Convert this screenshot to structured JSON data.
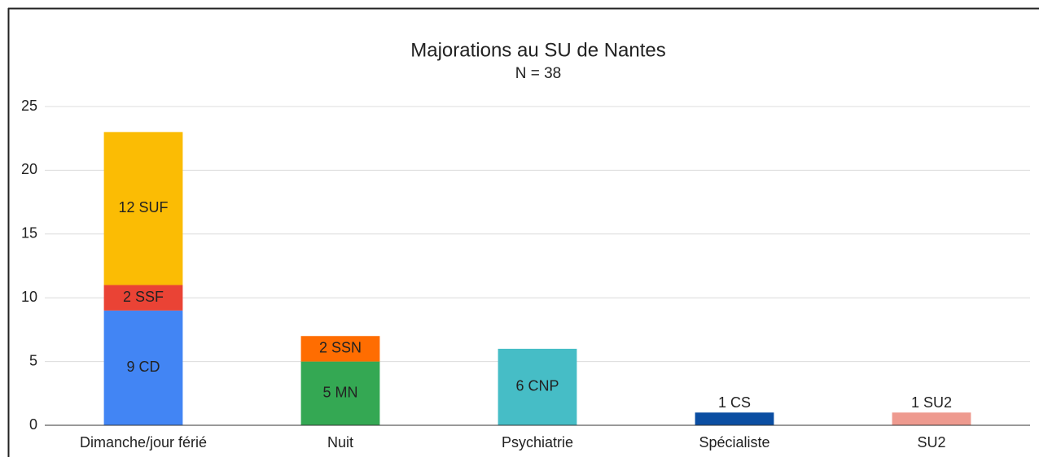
{
  "chart_data": {
    "type": "bar",
    "stacked": true,
    "title": "Majorations au SU de Nantes",
    "subtitle": "N = 38",
    "categories": [
      "Dimanche/jour férié",
      "Nuit",
      "Psychiatrie",
      "Spécialiste",
      "SU2"
    ],
    "series": [
      {
        "color": "#4285f4",
        "values": [
          9,
          null,
          null,
          null,
          null
        ],
        "value_labels": [
          "9 CD",
          null,
          null,
          null,
          null
        ]
      },
      {
        "color": "#ea4335",
        "values": [
          2,
          null,
          null,
          null,
          null
        ],
        "value_labels": [
          "2 SSF",
          null,
          null,
          null,
          null
        ]
      },
      {
        "color": "#fbbc04",
        "values": [
          12,
          null,
          null,
          null,
          null
        ],
        "value_labels": [
          "12 SUF",
          null,
          null,
          null,
          null
        ]
      },
      {
        "color": "#34a853",
        "values": [
          null,
          5,
          null,
          null,
          null
        ],
        "value_labels": [
          null,
          "5 MN",
          null,
          null,
          null
        ]
      },
      {
        "color": "#ff6d01",
        "values": [
          null,
          2,
          null,
          null,
          null
        ],
        "value_labels": [
          null,
          "2 SSN",
          null,
          null,
          null
        ]
      },
      {
        "color": "#46bdc6",
        "values": [
          null,
          null,
          6,
          null,
          null
        ],
        "value_labels": [
          null,
          null,
          "6 CNP",
          null,
          null
        ]
      },
      {
        "color": "#0b4ea2",
        "values": [
          null,
          null,
          null,
          1,
          null
        ],
        "value_labels": [
          null,
          null,
          null,
          "1 CS",
          null
        ]
      },
      {
        "color": "#ee9a8f",
        "values": [
          null,
          null,
          null,
          null,
          1
        ],
        "value_labels": [
          null,
          null,
          null,
          null,
          "1 SU2"
        ]
      }
    ],
    "ylim": [
      0,
      25
    ],
    "yticks": [
      0,
      5,
      10,
      15,
      20,
      25
    ],
    "grid": true
  }
}
